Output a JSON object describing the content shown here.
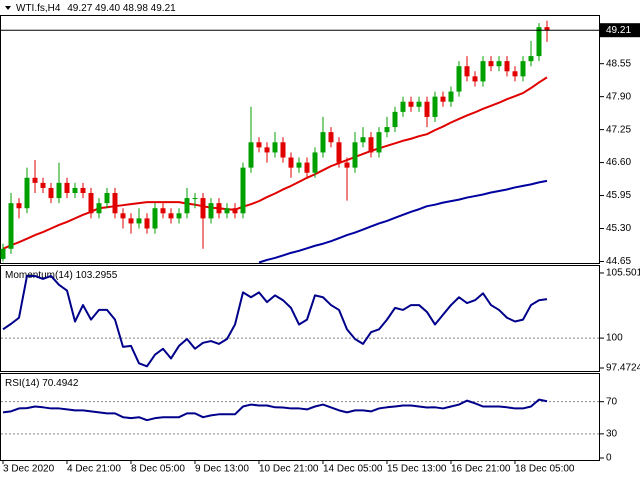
{
  "chart_data": [
    {
      "type": "candlestick",
      "title": "WTI.fs,H4",
      "ohlc_labels": [
        "49.27",
        "49.40",
        "48.98",
        "49.21"
      ],
      "up_color": "#00a000",
      "down_color": "#e00000",
      "open": [
        44.7,
        44.9,
        45.8,
        45.7,
        46.3,
        46.2,
        46.1,
        45.9,
        46.2,
        46.0,
        46.1,
        46.0,
        45.6,
        45.8,
        46.0,
        45.6,
        45.5,
        45.4,
        45.5,
        45.3,
        45.7,
        45.6,
        45.5,
        45.6,
        45.9,
        45.9,
        45.5,
        45.8,
        45.6,
        45.7,
        45.6,
        46.5,
        47.0,
        46.9,
        46.8,
        47.0,
        46.7,
        46.5,
        46.6,
        46.4,
        46.8,
        47.2,
        47.0,
        46.6,
        46.5,
        47.0,
        47.1,
        46.8,
        47.2,
        47.3,
        47.6,
        47.8,
        47.7,
        47.8,
        47.5,
        47.9,
        47.8,
        48.0,
        48.5,
        48.3,
        48.2,
        48.6,
        48.5,
        48.6,
        48.4,
        48.3,
        48.6,
        48.7,
        49.27
      ],
      "high": [
        45.0,
        46.0,
        45.9,
        46.5,
        46.65,
        46.3,
        46.2,
        46.6,
        46.3,
        46.2,
        46.2,
        46.1,
        45.9,
        46.1,
        46.1,
        45.7,
        45.6,
        45.7,
        45.6,
        45.8,
        45.8,
        45.7,
        45.7,
        46.1,
        46.0,
        46.0,
        45.9,
        45.9,
        45.8,
        45.8,
        46.6,
        47.7,
        47.1,
        47.0,
        47.2,
        47.1,
        46.8,
        46.7,
        46.7,
        46.9,
        47.5,
        47.3,
        47.1,
        46.7,
        47.2,
        47.3,
        47.2,
        47.3,
        47.5,
        47.7,
        47.9,
        47.9,
        47.9,
        47.9,
        48.0,
        48.0,
        48.1,
        48.6,
        48.7,
        48.4,
        48.7,
        48.7,
        48.7,
        48.7,
        48.5,
        48.7,
        49.0,
        49.35,
        49.4
      ],
      "low": [
        44.65,
        44.8,
        45.5,
        45.6,
        46.0,
        46.0,
        45.8,
        45.8,
        45.9,
        45.9,
        45.9,
        45.5,
        45.5,
        45.7,
        45.5,
        45.3,
        45.2,
        45.3,
        45.2,
        45.2,
        45.5,
        45.4,
        45.4,
        45.5,
        45.7,
        44.9,
        45.4,
        45.5,
        45.5,
        45.5,
        45.5,
        46.4,
        46.8,
        46.6,
        46.7,
        46.6,
        46.3,
        46.4,
        46.3,
        46.3,
        46.7,
        46.9,
        46.5,
        45.85,
        46.4,
        46.9,
        46.7,
        46.7,
        47.1,
        47.2,
        47.5,
        47.6,
        47.6,
        47.3,
        47.4,
        47.7,
        47.7,
        47.9,
        48.2,
        48.1,
        48.1,
        48.4,
        48.4,
        48.3,
        48.2,
        48.2,
        48.5,
        48.6,
        48.98
      ],
      "close": [
        44.9,
        45.8,
        45.7,
        46.3,
        46.2,
        46.1,
        45.9,
        46.2,
        46.0,
        46.1,
        46.0,
        45.6,
        45.8,
        46.0,
        45.6,
        45.5,
        45.4,
        45.5,
        45.3,
        45.7,
        45.6,
        45.5,
        45.6,
        45.9,
        45.9,
        45.5,
        45.8,
        45.6,
        45.7,
        45.6,
        46.5,
        47.0,
        46.9,
        46.8,
        47.0,
        46.7,
        46.5,
        46.6,
        46.4,
        46.8,
        47.2,
        47.0,
        46.6,
        46.5,
        47.0,
        47.1,
        46.8,
        47.2,
        47.3,
        47.6,
        47.8,
        47.7,
        47.8,
        47.5,
        47.9,
        47.8,
        48.0,
        48.5,
        48.3,
        48.2,
        48.6,
        48.5,
        48.6,
        48.4,
        48.3,
        48.6,
        48.7,
        49.27,
        49.21
      ],
      "series": [
        {
          "color": "#e00000",
          "values": [
            44.9,
            44.97,
            45.03,
            45.1,
            45.17,
            45.23,
            45.3,
            45.37,
            45.43,
            45.5,
            45.57,
            45.63,
            45.7,
            45.72,
            45.74,
            45.76,
            45.78,
            45.8,
            45.82,
            45.82,
            45.82,
            45.82,
            45.82,
            45.79,
            45.77,
            45.74,
            45.71,
            45.7,
            45.68,
            45.67,
            45.73,
            45.78,
            45.84,
            45.92,
            45.99,
            46.07,
            46.14,
            46.22,
            46.3,
            46.37,
            46.45,
            46.53,
            46.59,
            46.65,
            46.71,
            46.77,
            46.83,
            46.88,
            46.93,
            46.98,
            47.03,
            47.07,
            47.12,
            47.16,
            47.24,
            47.31,
            47.39,
            47.46,
            47.53,
            47.59,
            47.66,
            47.72,
            47.78,
            47.85,
            47.91,
            47.97,
            48.07,
            48.18,
            48.28
          ]
        },
        {
          "color": "#0000a0",
          "values": [
            null,
            null,
            null,
            null,
            null,
            null,
            null,
            null,
            null,
            null,
            null,
            null,
            null,
            null,
            null,
            null,
            null,
            null,
            null,
            null,
            null,
            null,
            null,
            null,
            null,
            null,
            null,
            null,
            null,
            null,
            null,
            null,
            44.63,
            44.68,
            44.72,
            44.77,
            44.82,
            44.86,
            44.91,
            44.96,
            45.0,
            45.05,
            45.11,
            45.17,
            45.22,
            45.28,
            45.34,
            45.4,
            45.45,
            45.51,
            45.57,
            45.63,
            45.68,
            45.74,
            45.77,
            45.81,
            45.84,
            45.87,
            45.91,
            45.94,
            45.97,
            46.01,
            46.04,
            46.07,
            46.11,
            46.14,
            46.17,
            46.21,
            46.24
          ]
        }
      ],
      "ylim": [
        44.62,
        49.49
      ],
      "yticks": [
        48.55,
        {
          "value": 47.9,
          "label": "47.90"
        },
        47.25,
        {
          "value": 46.6,
          "label": "46.60"
        },
        45.95,
        {
          "value": 45.3,
          "label": "45.30"
        },
        44.65
      ],
      "xticks": [
        {
          "value": 0,
          "label": "3 Dec 2020"
        },
        {
          "value": 8,
          "label": "4 Dec 21:00"
        },
        {
          "value": 16,
          "label": "8 Dec 05:00"
        },
        {
          "value": 24,
          "label": "9 Dec 13:00"
        },
        {
          "value": 32,
          "label": "10 Dec 21:00"
        },
        {
          "value": 40,
          "label": "14 Dec 05:00"
        },
        {
          "value": 48,
          "label": "15 Dec 13:00"
        },
        {
          "value": 56,
          "label": "16 Dec 21:00"
        },
        {
          "value": 64,
          "label": "18 Dec 05:00"
        }
      ]
    },
    {
      "type": "line",
      "title": "Momentum(14)",
      "series": [
        {
          "color": "#00008b",
          "values": [
            100.74,
            101.2,
            101.72,
            105.25,
            105.25,
            105.0,
            105.25,
            104.5,
            104.02,
            101.4,
            102.79,
            101.56,
            102.38,
            102.38,
            101.56,
            99.26,
            99.34,
            97.87,
            97.62,
            98.6,
            99.1,
            98.28,
            99.34,
            99.92,
            99.1,
            99.6,
            99.75,
            99.51,
            99.92,
            101.15,
            103.86,
            103.45,
            103.86,
            103.04,
            103.61,
            103.2,
            102.55,
            101.15,
            101.56,
            103.61,
            103.45,
            102.79,
            102.38,
            100.74,
            99.92,
            99.51,
            100.5,
            100.74,
            101.56,
            102.55,
            102.38,
            102.79,
            102.79,
            102.2,
            101.15,
            101.97,
            102.79,
            103.45,
            102.96,
            103.2,
            103.78,
            102.79,
            102.38,
            101.72,
            101.4,
            101.56,
            102.79,
            103.2,
            103.2955
          ]
        }
      ],
      "ylim": [
        97.22,
        106.09
      ],
      "yticks": [
        105.5013,
        100,
        97.4724
      ],
      "levels": [
        100
      ]
    },
    {
      "type": "line",
      "title": "RSI(14)",
      "series": [
        {
          "color": "#00008b",
          "values": [
            56.7,
            58,
            61.6,
            62,
            64,
            63,
            61.6,
            61.6,
            60.4,
            59.2,
            59.2,
            58,
            56.7,
            55.5,
            55.5,
            50.7,
            49.5,
            50.7,
            47,
            49.5,
            50.7,
            50.7,
            50.7,
            55.5,
            55.5,
            50.7,
            53,
            54.3,
            54.3,
            54.3,
            64,
            66.4,
            65.2,
            65.2,
            63,
            62.8,
            61.6,
            61.6,
            60.4,
            64,
            66.4,
            62.8,
            59.2,
            56.7,
            59.2,
            59.2,
            57.9,
            61.6,
            63,
            64,
            65.2,
            65.2,
            64,
            62.8,
            63,
            61.6,
            64,
            66.4,
            71.3,
            68,
            64,
            64,
            64,
            63,
            61.6,
            61.6,
            64,
            72.5,
            70.4942
          ]
        }
      ],
      "ylim": [
        -2.5,
        104.4
      ],
      "yticks": [
        70,
        30,
        0
      ],
      "levels": [
        70,
        30
      ]
    }
  ]
}
